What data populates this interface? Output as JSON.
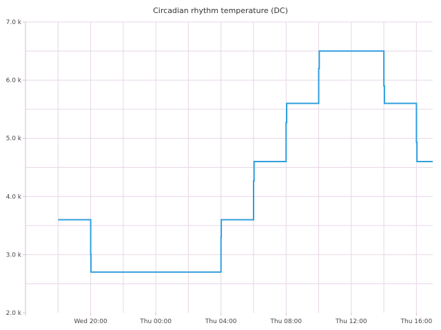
{
  "chart_data": {
    "type": "line",
    "title": "Circadian rhythm temperature (DC)",
    "xlabel": "",
    "ylabel": "",
    "x_range": [
      "Wed 16:00",
      "Thu 17:00"
    ],
    "ylim": [
      2000,
      7000
    ],
    "y_ticks": [
      2000,
      3000,
      4000,
      5000,
      6000,
      7000
    ],
    "y_tick_labels": [
      "2.0 k",
      "3.0 k",
      "4.0 k",
      "5.0 k",
      "6.0 k",
      "7.0 k"
    ],
    "x_ticks": [
      "Wed 20:00",
      "Thu 00:00",
      "Thu 04:00",
      "Thu 08:00",
      "Thu 12:00",
      "Thu 16:00"
    ],
    "x_tick_labels": [
      "Wed 20:00",
      "Thu 00:00",
      "Thu 04:00",
      "Thu 08:00",
      "Thu 12:00",
      "Thu 16:00"
    ],
    "grid": true,
    "step": true,
    "colors": {
      "line": "#2e9ede",
      "grid": "#e6d6e6",
      "axis": "#d9b8d9"
    },
    "series": [
      {
        "x": [
          "Wed 18:00",
          "Wed 20:00",
          "Wed 20:01",
          "Wed 20:04",
          "Thu 04:00",
          "Thu 04:01",
          "Thu 04:04",
          "Thu 06:00",
          "Thu 06:02",
          "Thu 08:00",
          "Thu 08:02",
          "Thu 10:00",
          "Thu 10:02",
          "Thu 14:00",
          "Thu 14:02",
          "Thu 16:00",
          "Thu 16:02",
          "Thu 17:00"
        ],
        "y": [
          3600,
          3000,
          2700,
          2700,
          3300,
          3600,
          3600,
          4270,
          4600,
          5270,
          5600,
          6200,
          6500,
          5900,
          5600,
          4930,
          4600,
          4600
        ]
      }
    ]
  }
}
